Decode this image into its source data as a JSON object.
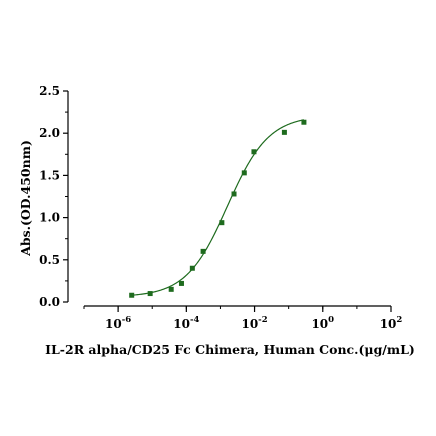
{
  "chart_data": {
    "type": "scatter",
    "title": "",
    "xlabel": "IL-2R alpha/CD25 Fc Chimera, Human Conc.(μg/mL)",
    "ylabel": "Abs.(OD.450nm)",
    "x_scale": "log",
    "xlim": [
      1e-07,
      100
    ],
    "ylim": [
      0,
      2.5
    ],
    "x_ticks": [
      {
        "value": 1e-06,
        "base": "10",
        "exp": "-6"
      },
      {
        "value": 0.0001,
        "base": "10",
        "exp": "-4"
      },
      {
        "value": 0.01,
        "base": "10",
        "exp": "-2"
      },
      {
        "value": 1,
        "base": "10",
        "exp": "0"
      },
      {
        "value": 100,
        "base": "10",
        "exp": "2"
      }
    ],
    "y_ticks": [
      "0.0",
      "0.5",
      "1.0",
      "1.5",
      "2.0",
      "2.5"
    ],
    "grid": false,
    "legend": "none",
    "series": [
      {
        "marker": "square",
        "color": "#1e6b1e",
        "x": [
          2.5e-06,
          8.7e-06,
          3.6e-05,
          7.2e-05,
          0.00015,
          0.00031,
          0.0011,
          0.0025,
          0.005,
          0.0096,
          0.075,
          0.28
        ],
        "y": [
          0.08,
          0.1,
          0.15,
          0.22,
          0.4,
          0.6,
          0.94,
          1.28,
          1.53,
          1.78,
          2.01,
          2.13
        ]
      }
    ],
    "fit_curve": {
      "model": "4PL",
      "color": "#1e6b1e",
      "bottom": 0.06,
      "top": 2.21,
      "ec50": 0.0016,
      "hill": 0.72
    }
  }
}
